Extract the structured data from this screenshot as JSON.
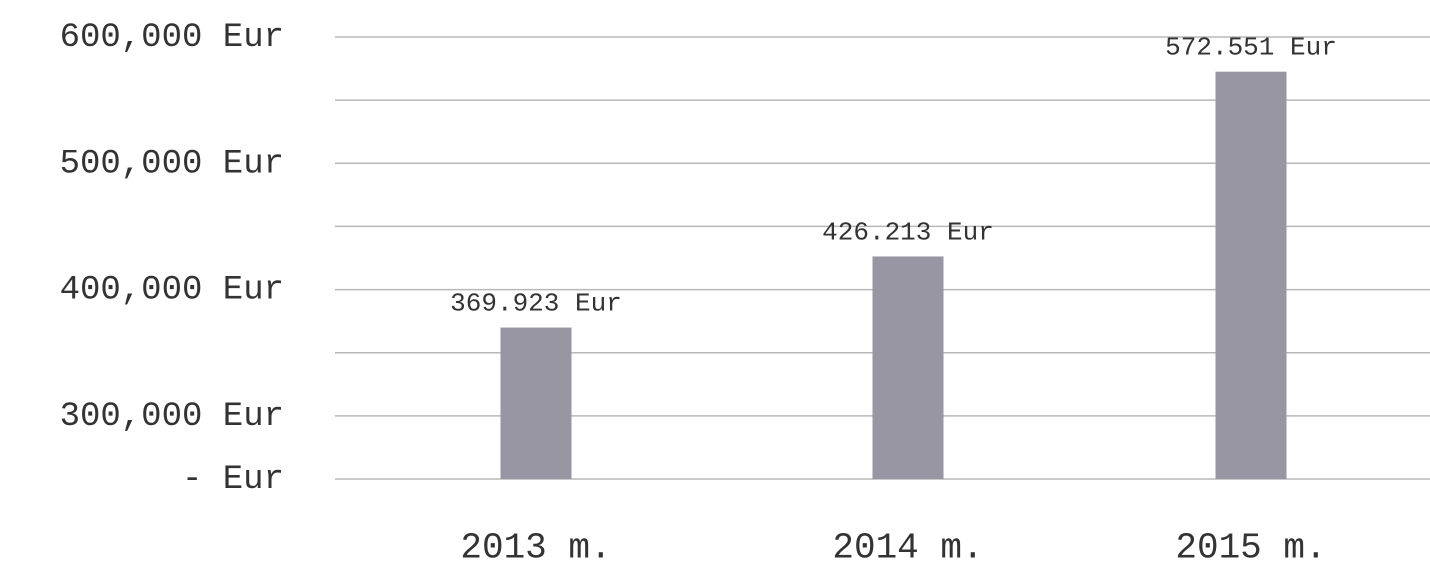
{
  "chart_data": {
    "type": "bar",
    "categories": [
      "2013 m.",
      "2014 m.",
      "2015 m."
    ],
    "values": [
      369923,
      426213,
      572551
    ],
    "value_labels": [
      "369.923 Eur",
      "426.213 Eur",
      "572.551 Eur"
    ],
    "color": "#9896a3",
    "ylim": [
      250000,
      600000
    ],
    "yticks": [
      {
        "value": 250000,
        "label": "- Eur"
      },
      {
        "value": 300000,
        "label": "300,000 Eur"
      },
      {
        "value": 400000,
        "label": "400,000 Eur"
      },
      {
        "value": 500000,
        "label": "500,000 Eur"
      },
      {
        "value": 600000,
        "label": "600,000 Eur"
      }
    ],
    "minor_yticks": [
      350000,
      450000,
      550000
    ],
    "grid": true
  }
}
